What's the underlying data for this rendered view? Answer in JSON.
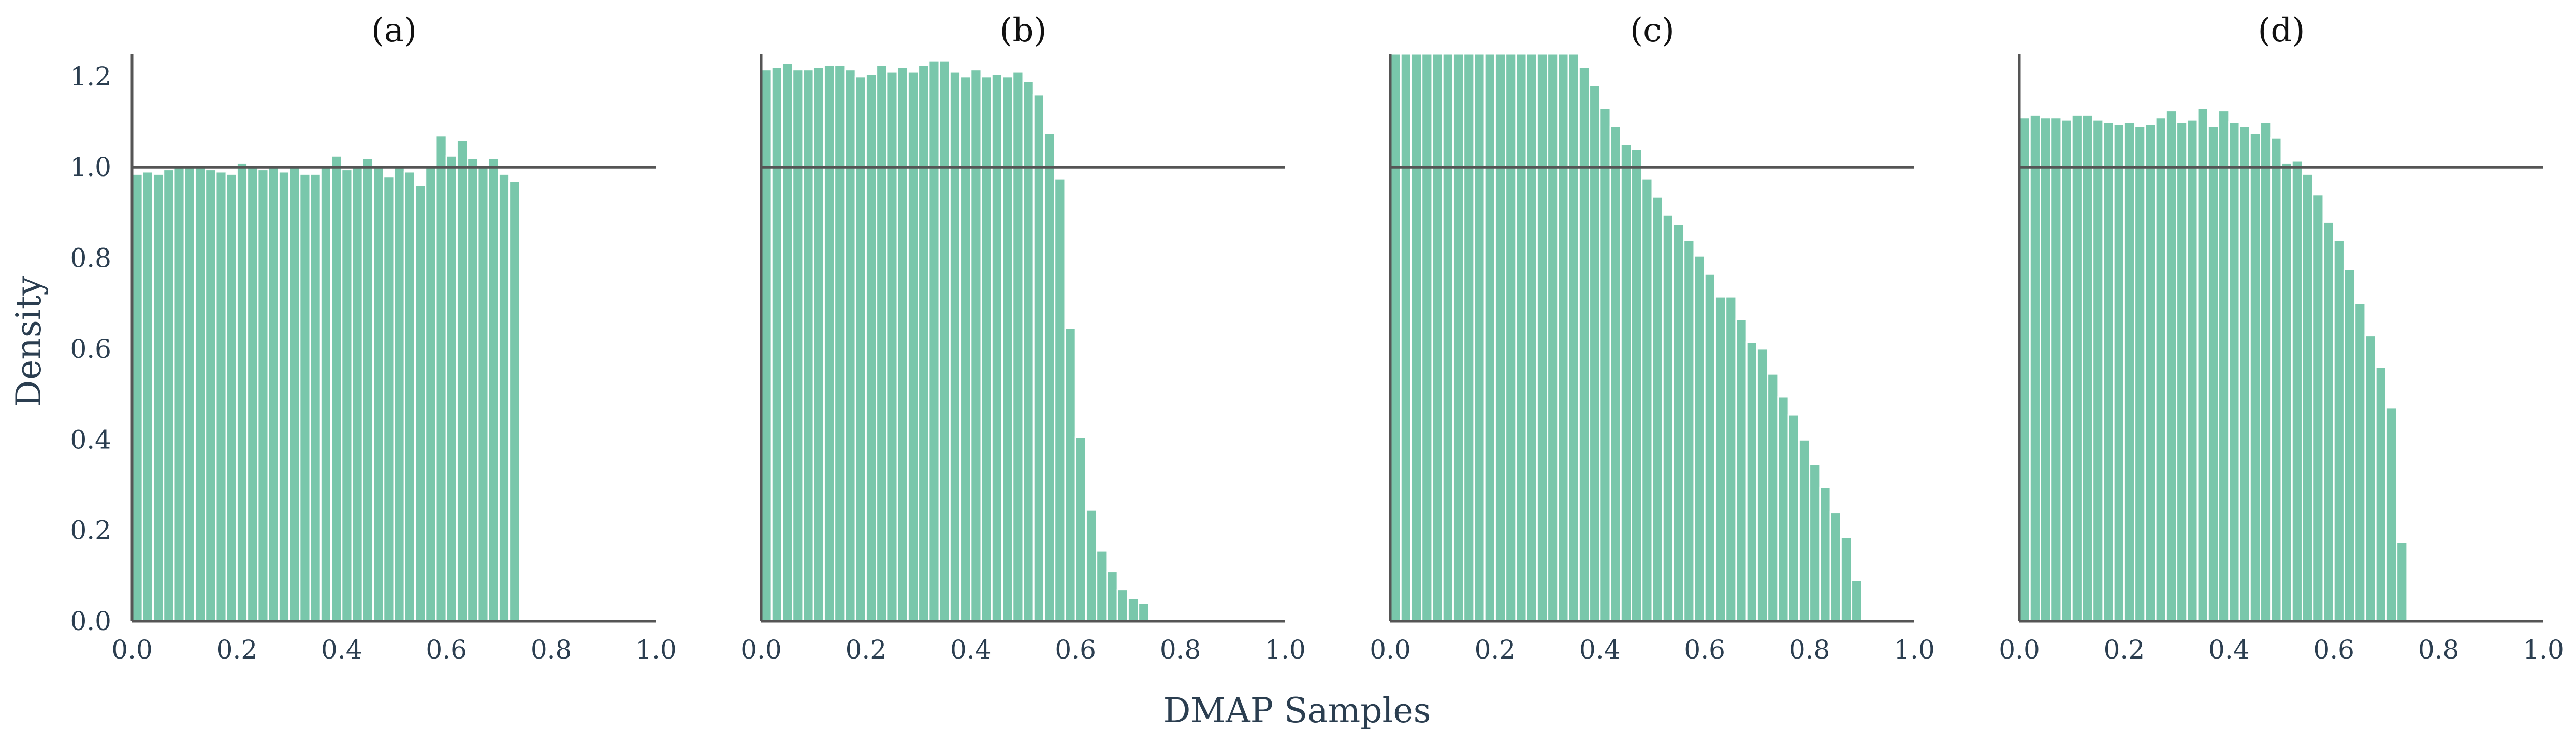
{
  "figure": {
    "xlabel": "DMAP Samples",
    "ylabel": "Density",
    "bar_color": "#79c7ab",
    "reference_line_color": "#555555",
    "text_color": "#2b3e50"
  },
  "chart_data": [
    {
      "type": "bar",
      "title": "(a)",
      "xlim": [
        0.0,
        1.0
      ],
      "ylim": [
        0.0,
        1.25
      ],
      "xticks": [
        "0.0",
        "0.2",
        "0.4",
        "0.6",
        "0.8",
        "1.0"
      ],
      "yticks": [
        "0.0",
        "0.2",
        "0.4",
        "0.6",
        "0.8",
        "1.0",
        "1.2"
      ],
      "show_yaxis": true,
      "reference_line": 1.0,
      "bin_edges_start": 0.0,
      "bin_width": 0.02,
      "values": [
        0.985,
        0.99,
        0.985,
        0.995,
        1.005,
        1.0,
        1.0,
        0.995,
        0.99,
        0.985,
        1.01,
        1.005,
        0.995,
        1.0,
        0.99,
        1.0,
        0.985,
        0.985,
        1.0,
        1.025,
        0.995,
        1.005,
        1.02,
        1.0,
        0.98,
        1.005,
        0.99,
        0.96,
        1.0,
        1.07,
        1.025,
        1.06,
        1.02,
        1.0,
        1.02,
        0.985,
        0.97
      ]
    },
    {
      "type": "bar",
      "title": "(b)",
      "xlim": [
        0.0,
        1.0
      ],
      "ylim": [
        0.0,
        1.25
      ],
      "xticks": [
        "0.0",
        "0.2",
        "0.4",
        "0.6",
        "0.8",
        "1.0"
      ],
      "show_yaxis": false,
      "reference_line": 1.0,
      "bin_edges_start": 0.0,
      "bin_width": 0.02,
      "values": [
        1.215,
        1.22,
        1.23,
        1.215,
        1.215,
        1.22,
        1.225,
        1.225,
        1.215,
        1.2,
        1.205,
        1.225,
        1.21,
        1.22,
        1.21,
        1.225,
        1.235,
        1.235,
        1.21,
        1.2,
        1.215,
        1.2,
        1.205,
        1.2,
        1.21,
        1.19,
        1.16,
        1.075,
        0.975,
        0.645,
        0.405,
        0.245,
        0.155,
        0.11,
        0.07,
        0.05,
        0.04
      ]
    },
    {
      "type": "bar",
      "title": "(c)",
      "xlim": [
        0.0,
        1.0
      ],
      "ylim": [
        0.0,
        1.25
      ],
      "xticks": [
        "0.0",
        "0.2",
        "0.4",
        "0.6",
        "0.8",
        "1.0"
      ],
      "show_yaxis": false,
      "reference_line": 1.0,
      "bin_edges_start": 0.0,
      "bin_width": 0.02,
      "values": [
        1.25,
        1.25,
        1.25,
        1.25,
        1.25,
        1.25,
        1.25,
        1.25,
        1.25,
        1.25,
        1.25,
        1.25,
        1.25,
        1.25,
        1.25,
        1.25,
        1.25,
        1.25,
        1.22,
        1.18,
        1.13,
        1.09,
        1.05,
        1.04,
        0.975,
        0.935,
        0.895,
        0.875,
        0.84,
        0.805,
        0.765,
        0.715,
        0.715,
        0.665,
        0.615,
        0.6,
        0.545,
        0.495,
        0.455,
        0.4,
        0.345,
        0.295,
        0.24,
        0.185,
        0.09
      ]
    },
    {
      "type": "bar",
      "title": "(d)",
      "xlim": [
        0.0,
        1.0
      ],
      "ylim": [
        0.0,
        1.25
      ],
      "xticks": [
        "0.0",
        "0.2",
        "0.4",
        "0.6",
        "0.8",
        "1.0"
      ],
      "show_yaxis": false,
      "reference_line": 1.0,
      "bin_edges_start": 0.0,
      "bin_width": 0.02,
      "values": [
        1.11,
        1.115,
        1.11,
        1.11,
        1.105,
        1.115,
        1.115,
        1.105,
        1.1,
        1.095,
        1.1,
        1.09,
        1.095,
        1.11,
        1.125,
        1.1,
        1.105,
        1.13,
        1.09,
        1.125,
        1.1,
        1.09,
        1.075,
        1.1,
        1.065,
        1.01,
        1.015,
        0.985,
        0.94,
        0.88,
        0.84,
        0.775,
        0.7,
        0.63,
        0.56,
        0.47,
        0.175
      ]
    }
  ]
}
